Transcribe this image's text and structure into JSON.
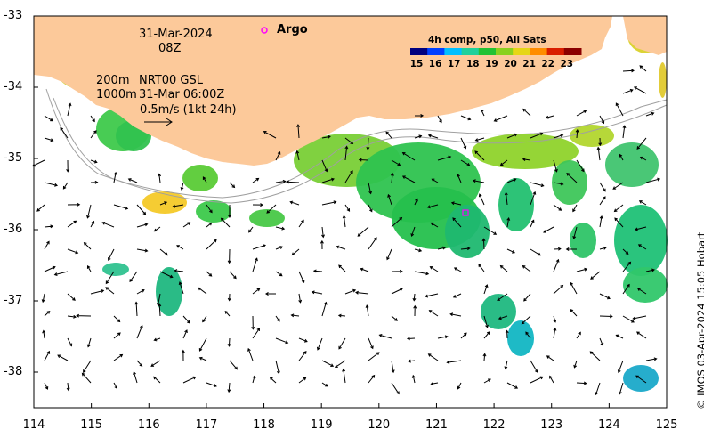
{
  "map": {
    "lon_range": [
      114,
      125
    ],
    "lat_range": [
      -38.5,
      -33
    ],
    "x_ticks": [
      "114",
      "115",
      "116",
      "117",
      "118",
      "119",
      "120",
      "121",
      "122",
      "123",
      "124",
      "125"
    ],
    "y_ticks": [
      "-33",
      "-34",
      "-35",
      "-36",
      "-37",
      "-38"
    ],
    "colors": {
      "land": "#fcc99a",
      "ocean": "#ffffff",
      "arrow": "#000000",
      "argo": "#ff00ff",
      "isobath": "#a0a0a0"
    }
  },
  "annotations": {
    "date": "31-Mar-2024",
    "hour": "08Z",
    "isobath_200": "200m",
    "isobath_1000": "1000m",
    "product": "NRT00 GSL",
    "product_time": "31-Mar 06:00Z",
    "scale": "0.5m/s (1kt 24h)",
    "argo_label": "Argo"
  },
  "colorbar": {
    "title": "4h comp, p50, All Sats",
    "labels": [
      "15",
      "16",
      "17",
      "18",
      "19",
      "20",
      "21",
      "22",
      "23"
    ],
    "colors": [
      "#00007f",
      "#0040ff",
      "#00bfff",
      "#1fd09b",
      "#22c233",
      "#8ad11f",
      "#e6d615",
      "#ff8c00",
      "#d91e00",
      "#8b0000"
    ]
  },
  "credit": "© IMOS 03-Apr-2024 15:05 Hobart"
}
